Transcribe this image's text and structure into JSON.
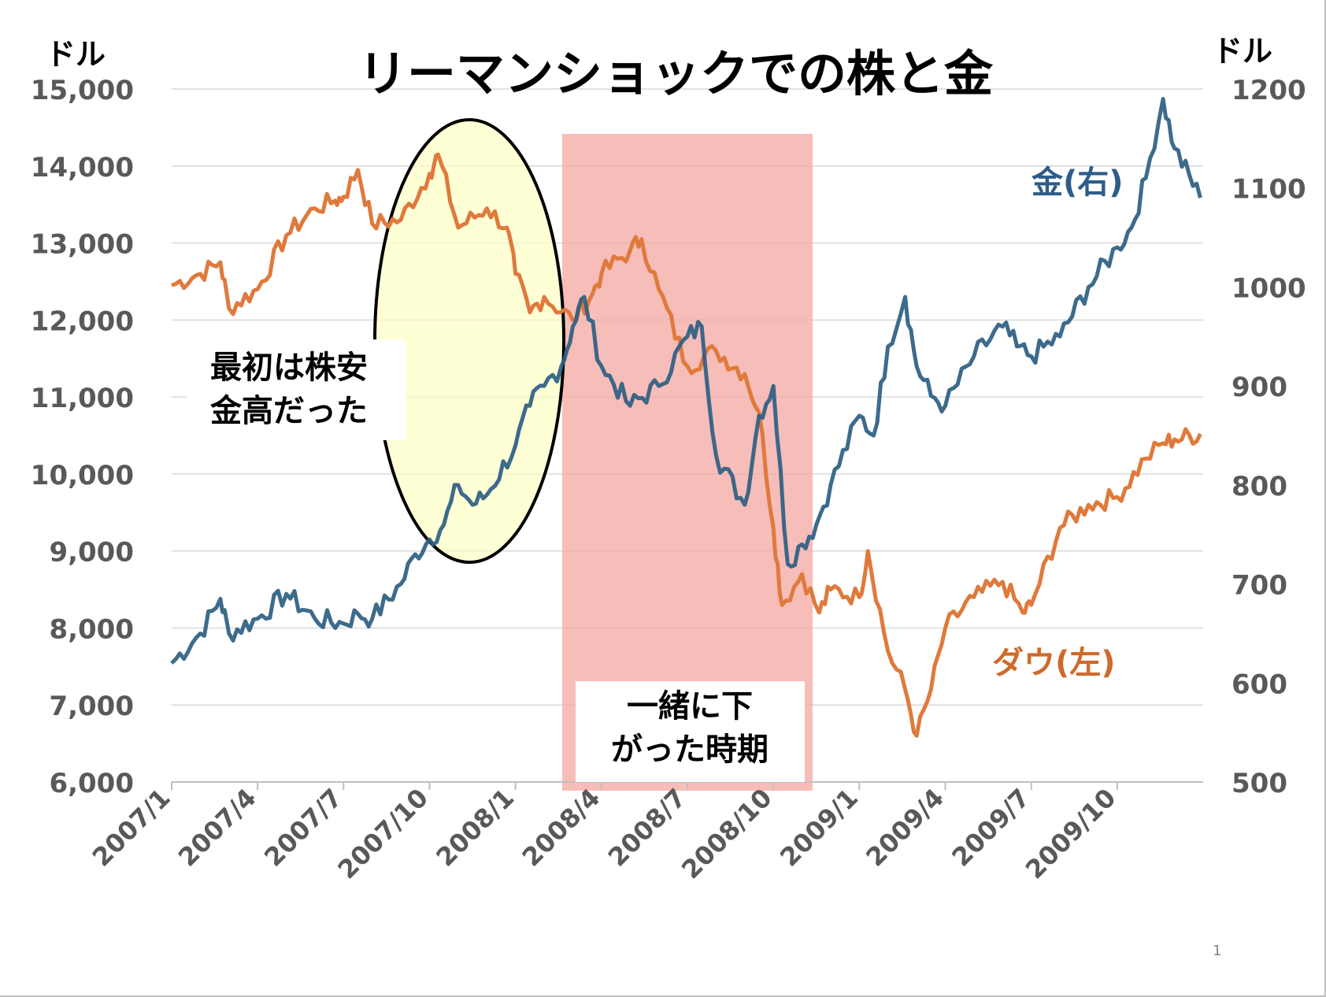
{
  "slide": {
    "page_number": "1"
  },
  "annotations": {
    "early_note": [
      "最初は株安",
      "金高だった"
    ],
    "together_note": [
      "一緒に下",
      "がった時期"
    ]
  },
  "colors": {
    "dow": "#df7a3c",
    "gold": "#2d5e82",
    "grid": "#d9d9d9",
    "axis_text": "#595959",
    "oval_fill": "#ffffc0",
    "shade_fill": "#f4a7a1",
    "label_gold": "#2e5c8a",
    "label_dow": "#cf6a2b"
  },
  "chart_data": {
    "type": "line",
    "title": "リーマンショックでの株と金",
    "y_left": {
      "unit_label": "ドル",
      "min": 6000,
      "max": 15000,
      "ticks": [
        6000,
        7000,
        8000,
        9000,
        10000,
        11000,
        12000,
        13000,
        14000,
        15000
      ],
      "tick_labels": [
        "6,000",
        "7,000",
        "8,000",
        "9,000",
        "10,000",
        "11,000",
        "12,000",
        "13,000",
        "14,000",
        "15,000"
      ]
    },
    "y_right": {
      "unit_label": "ドル",
      "min": 500,
      "max": 1200,
      "ticks": [
        500,
        600,
        700,
        800,
        900,
        1000,
        1100,
        1200
      ],
      "tick_labels": [
        "500",
        "600",
        "700",
        "800",
        "900",
        "1000",
        "1100",
        "1200"
      ]
    },
    "x_axis": {
      "start": "2007/1",
      "end": "2009/12",
      "tick_labels": [
        "2007/1",
        "2007/4",
        "2007/7",
        "2007/10",
        "2008/1",
        "2008/4",
        "2008/7",
        "2008/10",
        "2009/1",
        "2009/4",
        "2009/7",
        "2009/10"
      ]
    },
    "grid": true,
    "series": [
      {
        "name": "ダウ(左)",
        "axis": "left",
        "points": [
          [
            "2007/1",
            12450
          ],
          [
            "2007/2",
            12600
          ],
          [
            "2007/2.7",
            12750
          ],
          [
            "2007/3",
            12150
          ],
          [
            "2007/4",
            12400
          ],
          [
            "2007/5",
            13100
          ],
          [
            "2007/6",
            13450
          ],
          [
            "2007/6.7",
            13550
          ],
          [
            "2007/7",
            13600
          ],
          [
            "2007/7.5",
            13950
          ],
          [
            "2007/8",
            13250
          ],
          [
            "2007/9",
            13300
          ],
          [
            "2007/10",
            13900
          ],
          [
            "2007/10.3",
            14150
          ],
          [
            "2007/11",
            13200
          ],
          [
            "2007/12",
            13450
          ],
          [
            "2007/12.7",
            13200
          ],
          [
            "2008/1",
            12600
          ],
          [
            "2008/1.5",
            12100
          ],
          [
            "2008/2",
            12300
          ],
          [
            "2008/3",
            12000
          ],
          [
            "2008/3.7",
            12350
          ],
          [
            "2008/4",
            12600
          ],
          [
            "2008/5",
            12900
          ],
          [
            "2008/5.4",
            13050
          ],
          [
            "2008/6",
            12400
          ],
          [
            "2008/7",
            11400
          ],
          [
            "2008/8",
            11600
          ],
          [
            "2008/9",
            11300
          ],
          [
            "2008/9.5",
            10800
          ],
          [
            "2008/10",
            9300
          ],
          [
            "2008/10.3",
            8300
          ],
          [
            "2008/11",
            8700
          ],
          [
            "2008/11.6",
            8200
          ],
          [
            "2008/12",
            8500
          ],
          [
            "2009/1",
            8400
          ],
          [
            "2009/1.3",
            9000
          ],
          [
            "2009/2",
            7700
          ],
          [
            "2009/2.6",
            7200
          ],
          [
            "2009/3",
            6600
          ],
          [
            "2009/3.5",
            7200
          ],
          [
            "2009/4",
            8000
          ],
          [
            "2009/5",
            8400
          ],
          [
            "2009/6",
            8600
          ],
          [
            "2009/6.7",
            8200
          ],
          [
            "2009/7",
            8300
          ],
          [
            "2009/8",
            9300
          ],
          [
            "2009/9",
            9600
          ],
          [
            "2009/10",
            9700
          ],
          [
            "2009/11",
            10200
          ],
          [
            "2009/11.6",
            10400
          ],
          [
            "2009/12",
            10450
          ],
          [
            "2009/12.9",
            10520
          ]
        ]
      },
      {
        "name": "金(右)",
        "axis": "right",
        "points": [
          [
            "2007/1",
            620
          ],
          [
            "2007/2",
            650
          ],
          [
            "2007/2.7",
            685
          ],
          [
            "2007/3",
            650
          ],
          [
            "2007/4",
            665
          ],
          [
            "2007/5",
            690
          ],
          [
            "2007/6",
            665
          ],
          [
            "2007/7",
            660
          ],
          [
            "2007/7.5",
            670
          ],
          [
            "2007/8",
            665
          ],
          [
            "2007/9",
            700
          ],
          [
            "2007/9.5",
            730
          ],
          [
            "2007/10",
            745
          ],
          [
            "2007/10.5",
            760
          ],
          [
            "2007/11",
            800
          ],
          [
            "2007/11.5",
            780
          ],
          [
            "2007/12",
            790
          ],
          [
            "2008/1",
            840
          ],
          [
            "2008/1.5",
            880
          ],
          [
            "2008/2",
            900
          ],
          [
            "2008/2.6",
            920
          ],
          [
            "2008/3",
            960
          ],
          [
            "2008/3.4",
            990
          ],
          [
            "2008/4",
            920
          ],
          [
            "2008/5",
            880
          ],
          [
            "2008/6",
            900
          ],
          [
            "2008/7",
            950
          ],
          [
            "2008/7.5",
            960
          ],
          [
            "2008/8",
            830
          ],
          [
            "2008/9",
            780
          ],
          [
            "2008/9.5",
            870
          ],
          [
            "2008/10",
            900
          ],
          [
            "2008/10.5",
            720
          ],
          [
            "2008/11",
            740
          ],
          [
            "2008/11.5",
            760
          ],
          [
            "2008/12",
            800
          ],
          [
            "2009/1",
            870
          ],
          [
            "2009/1.5",
            850
          ],
          [
            "2009/2",
            940
          ],
          [
            "2009/2.6",
            990
          ],
          [
            "2009/3",
            920
          ],
          [
            "2009/3.5",
            890
          ],
          [
            "2009/4",
            880
          ],
          [
            "2009/5",
            930
          ],
          [
            "2009/6",
            960
          ],
          [
            "2009/6.5",
            940
          ],
          [
            "2009/7",
            930
          ],
          [
            "2009/8",
            950
          ],
          [
            "2009/9",
            1000
          ],
          [
            "2009/10",
            1040
          ],
          [
            "2009/10.5",
            1060
          ],
          [
            "2009/11",
            1110
          ],
          [
            "2009/11.6",
            1190
          ],
          [
            "2009/12",
            1140
          ],
          [
            "2009/12.9",
            1090
          ]
        ]
      }
    ],
    "series_labels": {
      "gold": "金(右)",
      "dow": "ダウ(左)"
    }
  }
}
